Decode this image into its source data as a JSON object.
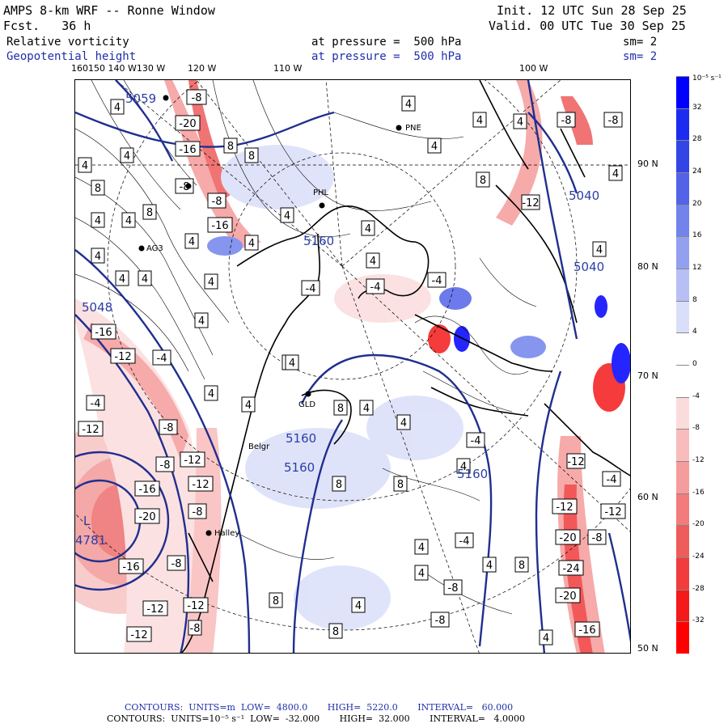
{
  "header": {
    "title": "AMPS 8-km WRF -- Ronne Window",
    "forecast": "Fcst.   36 h",
    "init": "Init. 12 UTC Sun 28 Sep 25",
    "valid": "Valid. 00 UTC Tue 30 Sep 25",
    "field1_name": "Relative vorticity",
    "field1_pressure": "at pressure =  500 hPa",
    "field1_sm": "sm= 2",
    "field2_name": "Geopotential height",
    "field2_pressure": "at pressure =  500 hPa",
    "field2_sm": "sm= 2"
  },
  "longitude_labels": [
    "160150 140 W130 W",
    "120 W",
    "110 W",
    "100 W"
  ],
  "latitude_labels": [
    "90 N",
    "80 N",
    "70 N",
    "60 N",
    "50 N"
  ],
  "colorbar": {
    "unit_label": "10⁻⁵ s⁻¹",
    "ticks": [
      "32",
      "28",
      "24",
      "20",
      "16",
      "12",
      "8",
      "4",
      "0",
      "-4",
      "-8",
      "-12",
      "-16",
      "-20",
      "-24",
      "-28",
      "-32"
    ],
    "colors": [
      "#0000ff",
      "#1c2bf0",
      "#3445e6",
      "#5363e8",
      "#7283ec",
      "#93a0f0",
      "#b7bff5",
      "#dadff9",
      "#ffffff",
      "#ffffff",
      "#fbdcdc",
      "#f8bcbc",
      "#f59c9c",
      "#f27c7c",
      "#ee5c5c",
      "#f03c3c",
      "#f41a1a",
      "#ff0000"
    ]
  },
  "stations": [
    "PHL",
    "PNE",
    "AG3",
    "GLD",
    "Belgr",
    "Halley"
  ],
  "height_labels": [
    "5040",
    "5040",
    "5160",
    "5160",
    "5160",
    "5160",
    "5048",
    "4781",
    "L",
    "5059"
  ],
  "footer": {
    "line1": "CONTOURS:  UNITS=m  LOW=  4800.0       HIGH=  5220.0       INTERVAL=   60.000",
    "line2": "CONTOURS:  UNITS=10⁻⁵ s⁻¹  LOW=  -32.000       HIGH=  32.000       INTERVAL=   4.0000"
  }
}
